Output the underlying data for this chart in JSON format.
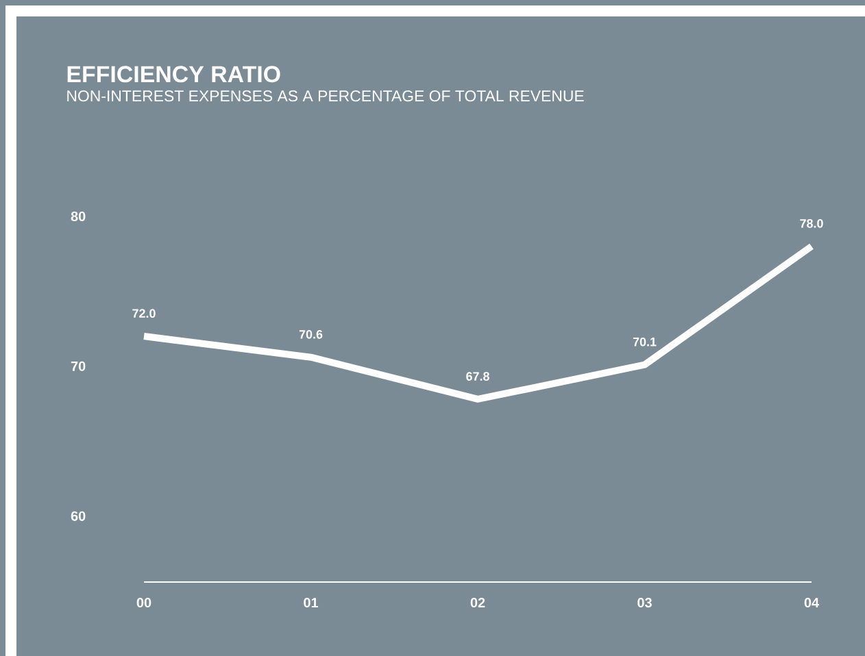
{
  "chart_data": {
    "type": "line",
    "title": "EFFICIENCY RATIO",
    "subtitle": "NON-INTEREST EXPENSES AS A PERCENTAGE OF TOTAL REVENUE",
    "categories": [
      "00",
      "01",
      "02",
      "03",
      "04"
    ],
    "series": [
      {
        "color": "#ffffff",
        "values": [
          72.0,
          70.6,
          67.8,
          70.1,
          78.0
        ],
        "value_labels": [
          "72.0",
          "70.6",
          "67.8",
          "70.1",
          "78.0"
        ]
      }
    ],
    "ylim": [
      55.6,
      80
    ],
    "yticks": [
      60,
      70,
      80
    ],
    "grid": false,
    "marker": "none",
    "line_style": "solid"
  }
}
